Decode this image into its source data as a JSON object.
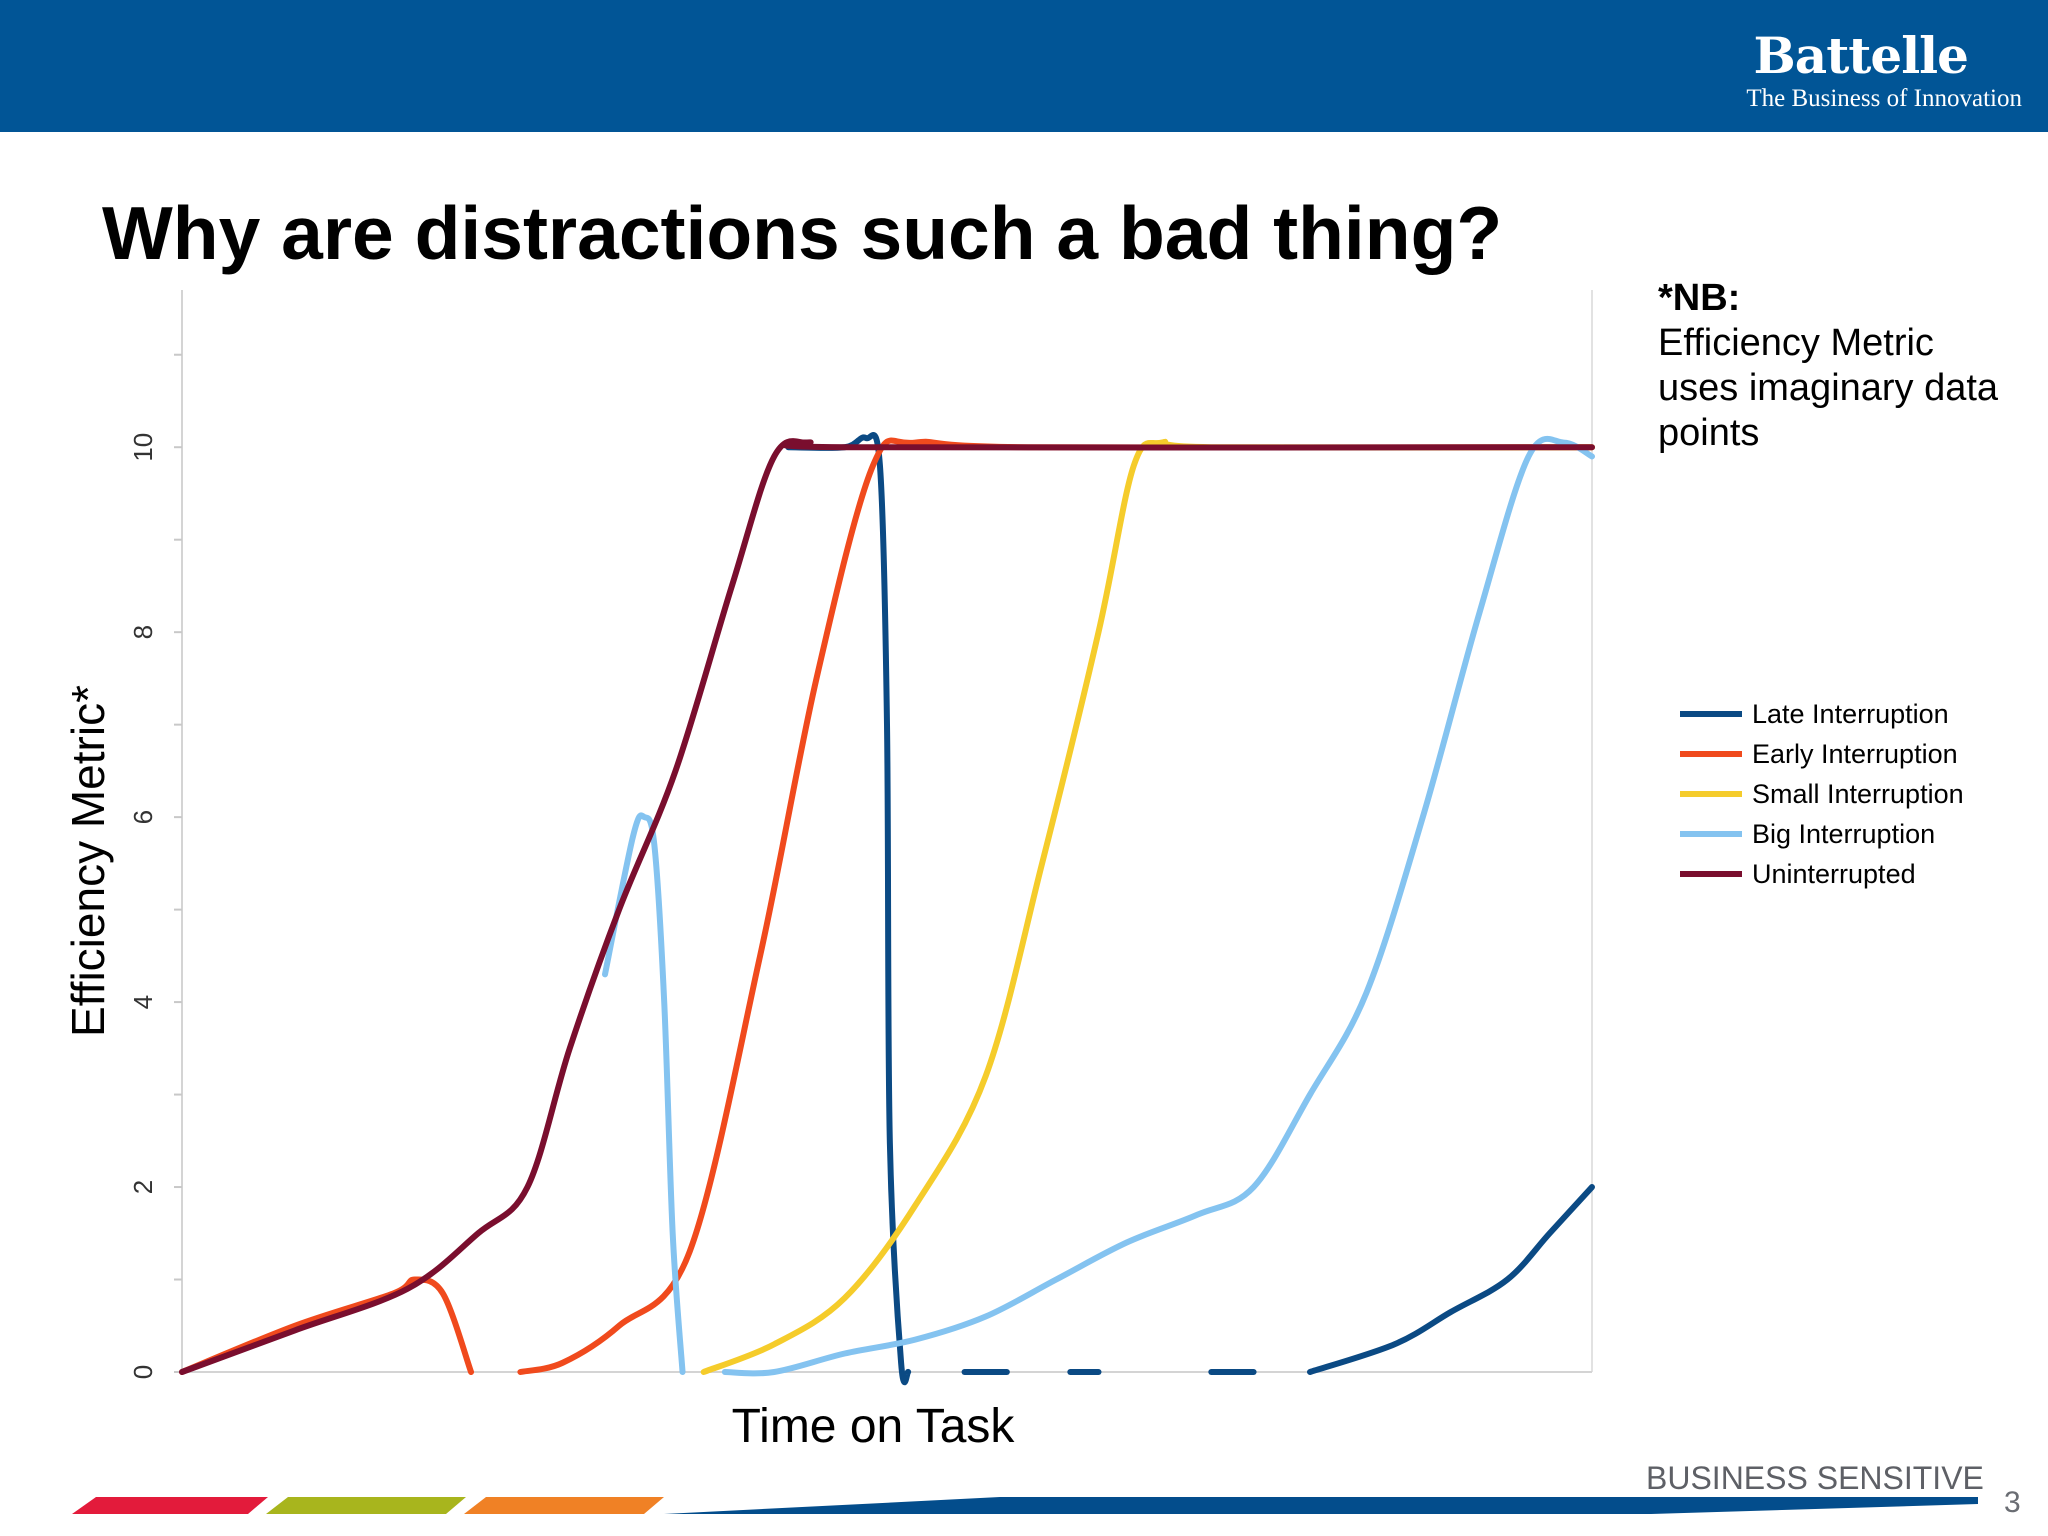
{
  "header": {
    "brand_name": "Battelle",
    "tagline": "The Business of Innovation"
  },
  "slide": {
    "title": "Why are distractions such a bad thing?"
  },
  "note": {
    "heading": "*NB:",
    "text": "Efficiency Metric uses imaginary data points"
  },
  "footer": {
    "classification": "BUSINESS SENSITIVE",
    "page_number": "3",
    "accent_colors": [
      "#e31b3b",
      "#a8b51d",
      "#f08125",
      "#034d8c"
    ]
  },
  "chart_data": {
    "type": "line",
    "title": "",
    "xlabel": "Time on Task",
    "ylabel": "Efficiency Metric*",
    "xlim": [
      0,
      10
    ],
    "ylim": [
      0,
      11.7
    ],
    "y_ticks": [
      0,
      2,
      4,
      6,
      8,
      10
    ],
    "x_tick_labels_shown": false,
    "grid": false,
    "legend_position": "right",
    "series": [
      {
        "name": "Late Interruption",
        "color": "#0b4a84",
        "segments": [
          [
            [
              4.3,
              10.0
            ],
            [
              4.7,
              10.0
            ],
            [
              4.85,
              10.1
            ],
            [
              4.95,
              9.8
            ],
            [
              5.0,
              7.0
            ],
            [
              5.02,
              2.5
            ],
            [
              5.1,
              0.1
            ],
            [
              5.15,
              0.0
            ]
          ],
          [
            [
              5.55,
              0.0
            ],
            [
              5.85,
              0.0
            ]
          ],
          [
            [
              6.3,
              0.0
            ],
            [
              6.5,
              0.0
            ]
          ],
          [
            [
              7.3,
              0.0
            ],
            [
              7.6,
              0.0
            ]
          ],
          [
            [
              8.0,
              0.0
            ],
            [
              8.6,
              0.3
            ],
            [
              9.0,
              0.65
            ],
            [
              9.4,
              1.0
            ],
            [
              9.7,
              1.5
            ],
            [
              10.0,
              2.0
            ]
          ]
        ]
      },
      {
        "name": "Early Interruption",
        "color": "#f04a1d",
        "segments": [
          [
            [
              0.0,
              0.0
            ],
            [
              0.8,
              0.5
            ],
            [
              1.5,
              0.85
            ],
            [
              1.65,
              1.0
            ],
            [
              1.85,
              0.85
            ],
            [
              2.05,
              0.0
            ]
          ],
          [
            [
              2.4,
              0.0
            ],
            [
              2.7,
              0.1
            ],
            [
              3.1,
              0.5
            ],
            [
              3.6,
              1.3
            ],
            [
              4.1,
              4.5
            ],
            [
              4.5,
              7.5
            ],
            [
              4.9,
              9.8
            ],
            [
              5.2,
              10.05
            ],
            [
              6.0,
              10.0
            ],
            [
              10.0,
              10.0
            ]
          ]
        ]
      },
      {
        "name": "Small Interruption",
        "color": "#f5cc2b",
        "segments": [
          [
            [
              3.7,
              0.0
            ],
            [
              4.2,
              0.3
            ],
            [
              4.7,
              0.8
            ],
            [
              5.2,
              1.8
            ],
            [
              5.7,
              3.2
            ],
            [
              6.1,
              5.5
            ],
            [
              6.5,
              8.0
            ],
            [
              6.75,
              9.8
            ],
            [
              6.95,
              10.05
            ],
            [
              7.3,
              10.0
            ],
            [
              10.0,
              10.0
            ]
          ]
        ]
      },
      {
        "name": "Big Interruption",
        "color": "#84c3f0",
        "segments": [
          [
            [
              3.0,
              4.3
            ],
            [
              3.2,
              5.8
            ],
            [
              3.28,
              6.0
            ],
            [
              3.35,
              5.7
            ],
            [
              3.42,
              4.0
            ],
            [
              3.48,
              1.5
            ],
            [
              3.55,
              0.0
            ]
          ],
          [
            [
              3.85,
              0.0
            ],
            [
              4.2,
              0.0
            ],
            [
              4.7,
              0.2
            ],
            [
              5.2,
              0.35
            ],
            [
              5.7,
              0.6
            ],
            [
              6.2,
              1.0
            ],
            [
              6.7,
              1.4
            ],
            [
              7.2,
              1.7
            ],
            [
              7.6,
              2.0
            ],
            [
              8.0,
              3.0
            ],
            [
              8.4,
              4.1
            ],
            [
              8.8,
              6.0
            ],
            [
              9.2,
              8.2
            ],
            [
              9.55,
              9.9
            ],
            [
              9.8,
              10.05
            ],
            [
              10.0,
              9.9
            ]
          ]
        ]
      },
      {
        "name": "Uninterrupted",
        "color": "#7a0e2e",
        "segments": [
          [
            [
              0.0,
              0.0
            ],
            [
              0.8,
              0.45
            ],
            [
              1.6,
              0.9
            ],
            [
              2.1,
              1.5
            ],
            [
              2.45,
              2.0
            ],
            [
              2.75,
              3.5
            ],
            [
              3.1,
              5.0
            ],
            [
              3.5,
              6.5
            ],
            [
              3.9,
              8.5
            ],
            [
              4.2,
              9.9
            ],
            [
              4.45,
              10.05
            ],
            [
              4.75,
              10.0
            ],
            [
              10.0,
              10.0
            ]
          ]
        ]
      }
    ]
  }
}
